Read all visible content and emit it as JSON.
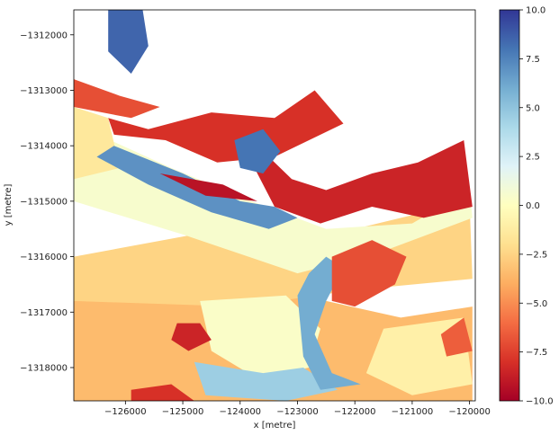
{
  "chart_data": {
    "type": "heatmap",
    "title": "",
    "xlabel": "x [metre]",
    "ylabel": "y [metre]",
    "xlim": [
      -126900,
      -119900
    ],
    "ylim": [
      -1318600,
      -1311550
    ],
    "x_ticks": [
      -126000,
      -125000,
      -124000,
      -123000,
      -122000,
      -121000,
      -120000
    ],
    "x_tick_labels": [
      "−126000",
      "−125000",
      "−124000",
      "−123000",
      "−122000",
      "−121000",
      "−120000"
    ],
    "y_ticks": [
      -1312000,
      -1313000,
      -1314000,
      -1315000,
      -1316000,
      -1317000,
      -1318000
    ],
    "y_tick_labels": [
      "−1312000",
      "−1313000",
      "−1314000",
      "−1315000",
      "−1316000",
      "−1317000",
      "−1318000"
    ],
    "colorbar": {
      "colormap": "RdYlBu",
      "vmin": -10.0,
      "vmax": 10.0,
      "ticks": [
        10.0,
        7.5,
        5.0,
        2.5,
        0.0,
        -2.5,
        -5.0,
        -7.5,
        -10.0
      ],
      "tick_labels": [
        "10.0",
        "7.5",
        "5.0",
        "2.5",
        "0.0",
        "−2.5",
        "−5.0",
        "−7.5",
        "−10.0"
      ]
    },
    "colors": [
      "#a50026",
      "#d73027",
      "#f46d43",
      "#fdae61",
      "#fee090",
      "#ffffbf",
      "#e0f3f8",
      "#abd9e9",
      "#74add1",
      "#4575b4",
      "#313695"
    ],
    "regions": [
      {
        "value": -3.5,
        "polygon": [
          [
            -126900,
            -1318600
          ],
          [
            -119950,
            -1318600
          ],
          [
            -119950,
            -1316900
          ],
          [
            -121200,
            -1317100
          ],
          [
            -122500,
            -1316800
          ],
          [
            -123500,
            -1316300
          ],
          [
            -125000,
            -1316200
          ],
          [
            -126900,
            -1316100
          ]
        ]
      },
      {
        "value": -2.5,
        "polygon": [
          [
            -126900,
            -1316000
          ],
          [
            -124800,
            -1315600
          ],
          [
            -123000,
            -1315800
          ],
          [
            -122000,
            -1315500
          ],
          [
            -120000,
            -1315000
          ],
          [
            -119950,
            -1316400
          ],
          [
            -122000,
            -1316600
          ],
          [
            -124000,
            -1316900
          ],
          [
            -126900,
            -1316800
          ]
        ]
      },
      {
        "value": 0.5,
        "polygon": [
          [
            -126900,
            -1313600
          ],
          [
            -125200,
            -1314400
          ],
          [
            -123800,
            -1315000
          ],
          [
            -122500,
            -1315500
          ],
          [
            -121000,
            -1315400
          ],
          [
            -120000,
            -1314800
          ],
          [
            -119950,
            -1315300
          ],
          [
            -121500,
            -1315900
          ],
          [
            -123000,
            -1316300
          ],
          [
            -125000,
            -1315600
          ],
          [
            -126900,
            -1315000
          ]
        ]
      },
      {
        "value": -1.5,
        "polygon": [
          [
            -126900,
            -1313300
          ],
          [
            -126300,
            -1313500
          ],
          [
            -126100,
            -1314400
          ],
          [
            -126900,
            -1314600
          ]
        ]
      },
      {
        "value": 0.3,
        "polygon": [
          [
            -124700,
            -1316800
          ],
          [
            -123200,
            -1316700
          ],
          [
            -122600,
            -1317300
          ],
          [
            -122800,
            -1318000
          ],
          [
            -123700,
            -1318200
          ],
          [
            -124500,
            -1317700
          ]
        ]
      },
      {
        "value": -1.0,
        "polygon": [
          [
            -121500,
            -1317300
          ],
          [
            -120100,
            -1317100
          ],
          [
            -119950,
            -1318300
          ],
          [
            -121000,
            -1318500
          ],
          [
            -121800,
            -1318100
          ]
        ]
      },
      {
        "value": 4.5,
        "polygon": [
          [
            -124800,
            -1317900
          ],
          [
            -123600,
            -1318100
          ],
          [
            -122900,
            -1318000
          ],
          [
            -122300,
            -1318400
          ],
          [
            -123200,
            -1318600
          ],
          [
            -124600,
            -1318500
          ]
        ]
      },
      {
        "value": 7.0,
        "polygon": [
          [
            -126200,
            -1314000
          ],
          [
            -125000,
            -1314500
          ],
          [
            -124000,
            -1315000
          ],
          [
            -123400,
            -1315100
          ],
          [
            -123000,
            -1315300
          ],
          [
            -123500,
            -1315500
          ],
          [
            -124500,
            -1315200
          ],
          [
            -125600,
            -1314700
          ],
          [
            -126500,
            -1314200
          ]
        ]
      },
      {
        "value": 6.0,
        "polygon": [
          [
            -123000,
            -1316700
          ],
          [
            -122800,
            -1316300
          ],
          [
            -122500,
            -1316000
          ],
          [
            -122200,
            -1316200
          ],
          [
            -122500,
            -1316800
          ],
          [
            -122700,
            -1317400
          ],
          [
            -122400,
            -1318100
          ],
          [
            -121900,
            -1318300
          ],
          [
            -122600,
            -1318400
          ],
          [
            -122900,
            -1317800
          ]
        ]
      },
      {
        "value": -8.0,
        "polygon": [
          [
            -126300,
            -1313500
          ],
          [
            -125600,
            -1313700
          ],
          [
            -124500,
            -1313400
          ],
          [
            -123400,
            -1313500
          ],
          [
            -122700,
            -1313000
          ],
          [
            -122200,
            -1313600
          ],
          [
            -123400,
            -1314200
          ],
          [
            -124400,
            -1314300
          ],
          [
            -125300,
            -1313900
          ],
          [
            -126200,
            -1313800
          ]
        ]
      },
      {
        "value": -8.5,
        "polygon": [
          [
            -123900,
            -1314100
          ],
          [
            -123500,
            -1314200
          ],
          [
            -123100,
            -1314600
          ],
          [
            -122500,
            -1314800
          ],
          [
            -121700,
            -1314500
          ],
          [
            -120900,
            -1314300
          ],
          [
            -120100,
            -1313900
          ],
          [
            -119950,
            -1315100
          ],
          [
            -120800,
            -1315300
          ],
          [
            -121700,
            -1315100
          ],
          [
            -122600,
            -1315400
          ],
          [
            -123400,
            -1315100
          ]
        ]
      },
      {
        "value": -9.2,
        "polygon": [
          [
            -125400,
            -1314500
          ],
          [
            -124600,
            -1314900
          ],
          [
            -123700,
            -1315000
          ],
          [
            -124300,
            -1314700
          ]
        ]
      },
      {
        "value": -7.0,
        "polygon": [
          [
            -122400,
            -1316000
          ],
          [
            -121700,
            -1315700
          ],
          [
            -121100,
            -1316000
          ],
          [
            -121300,
            -1316500
          ],
          [
            -122000,
            -1316900
          ],
          [
            -122400,
            -1316800
          ]
        ]
      },
      {
        "value": -7.0,
        "polygon": [
          [
            -126900,
            -1312800
          ],
          [
            -126100,
            -1313100
          ],
          [
            -125400,
            -1313300
          ],
          [
            -125900,
            -1313500
          ],
          [
            -126900,
            -1313300
          ]
        ]
      },
      {
        "value": -8.0,
        "polygon": [
          [
            -125900,
            -1318400
          ],
          [
            -125200,
            -1318300
          ],
          [
            -124800,
            -1318600
          ],
          [
            -125900,
            -1318600
          ]
        ]
      },
      {
        "value": -8.5,
        "polygon": [
          [
            -125100,
            -1317200
          ],
          [
            -124700,
            -1317200
          ],
          [
            -124500,
            -1317500
          ],
          [
            -124900,
            -1317700
          ],
          [
            -125200,
            -1317500
          ]
        ]
      },
      {
        "value": -6.5,
        "polygon": [
          [
            -120500,
            -1317400
          ],
          [
            -120100,
            -1317100
          ],
          [
            -119950,
            -1317700
          ],
          [
            -120400,
            -1317800
          ]
        ]
      },
      {
        "value": 8.5,
        "polygon": [
          [
            -126300,
            -1311550
          ],
          [
            -125700,
            -1311550
          ],
          [
            -125600,
            -1312200
          ],
          [
            -125900,
            -1312700
          ],
          [
            -126300,
            -1312300
          ]
        ]
      },
      {
        "value": 8.0,
        "polygon": [
          [
            -124100,
            -1313900
          ],
          [
            -123600,
            -1313700
          ],
          [
            -123300,
            -1314100
          ],
          [
            -123600,
            -1314500
          ],
          [
            -124000,
            -1314400
          ]
        ]
      }
    ]
  }
}
